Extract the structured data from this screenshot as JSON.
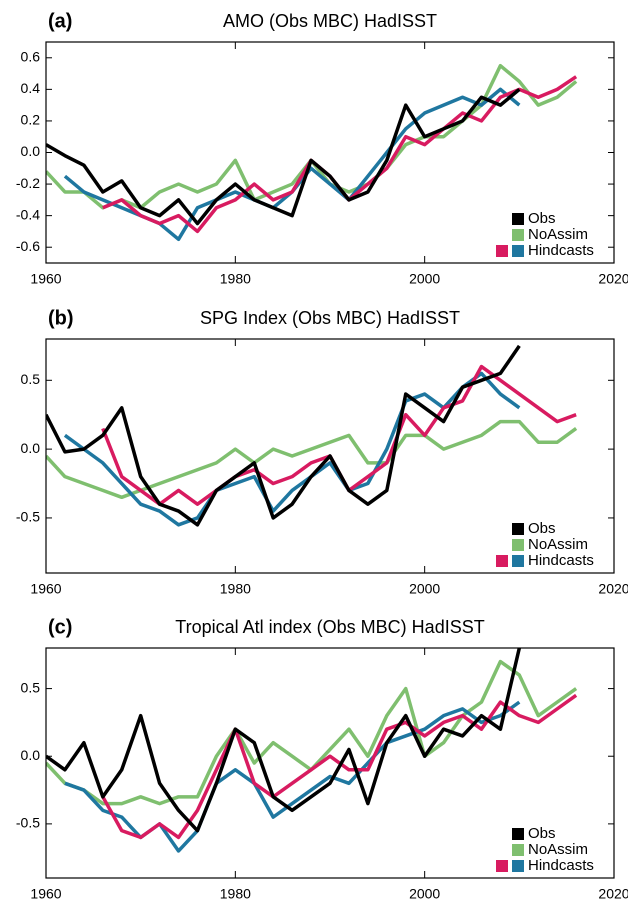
{
  "chart_data": [
    {
      "type": "line",
      "panel_label": "(a)",
      "title": "AMO (Obs MBC) HadISST",
      "legend": "lower right",
      "x": [
        1960,
        1962,
        1964,
        1966,
        1968,
        1970,
        1972,
        1974,
        1976,
        1978,
        1980,
        1982,
        1984,
        1986,
        1988,
        1990,
        1992,
        1994,
        1996,
        1998,
        2000,
        2002,
        2004,
        2006,
        2008,
        2010,
        2012,
        2014,
        2016
      ],
      "xlim": [
        1960,
        2020
      ],
      "xticks": [
        1960,
        1980,
        2000,
        2020
      ],
      "ylim": [
        -0.7,
        0.7
      ],
      "yticks": [
        -0.6,
        -0.4,
        -0.2,
        {
          "value": 0,
          "label": "0.0"
        },
        0.2,
        0.4,
        0.6
      ],
      "series": [
        {
          "name": "Obs",
          "color": "#000000",
          "values": [
            0.05,
            -0.02,
            -0.08,
            -0.25,
            -0.18,
            -0.35,
            -0.4,
            -0.3,
            -0.45,
            -0.3,
            -0.2,
            -0.3,
            -0.35,
            -0.4,
            -0.05,
            -0.15,
            -0.3,
            -0.25,
            -0.05,
            0.3,
            0.1,
            0.15,
            0.2,
            0.35,
            0.3,
            0.4,
            null,
            null,
            null
          ]
        },
        {
          "name": "NoAssim",
          "color": "#7fbf6f",
          "values": [
            -0.12,
            -0.25,
            -0.25,
            -0.35,
            -0.3,
            -0.35,
            -0.25,
            -0.2,
            -0.25,
            -0.2,
            -0.05,
            -0.3,
            -0.25,
            -0.2,
            -0.05,
            -0.2,
            -0.25,
            -0.2,
            -0.1,
            0.05,
            0.1,
            0.1,
            0.2,
            0.3,
            0.55,
            0.45,
            0.3,
            0.35,
            0.45
          ]
        },
        {
          "name": "Hindcasts",
          "color": "#d81b60",
          "values": [
            null,
            null,
            null,
            -0.35,
            -0.3,
            -0.4,
            -0.45,
            -0.4,
            -0.5,
            -0.35,
            -0.3,
            -0.2,
            -0.3,
            -0.25,
            -0.05,
            -0.15,
            -0.3,
            -0.2,
            -0.1,
            0.1,
            0.05,
            0.15,
            0.25,
            0.2,
            0.35,
            0.4,
            0.35,
            0.4,
            0.48
          ]
        },
        {
          "color": "#1f77a0",
          "values": [
            null,
            -0.15,
            -0.25,
            -0.3,
            -0.35,
            -0.4,
            -0.45,
            -0.55,
            -0.35,
            -0.3,
            -0.25,
            -0.3,
            -0.35,
            -0.25,
            -0.1,
            -0.2,
            -0.3,
            -0.15,
            0,
            0.15,
            0.25,
            0.3,
            0.35,
            0.3,
            0.4,
            0.3,
            null,
            null,
            null
          ]
        }
      ]
    },
    {
      "type": "line",
      "panel_label": "(b)",
      "title": "SPG Index (Obs MBC) HadISST",
      "legend": "lower right",
      "x": [
        1960,
        1962,
        1964,
        1966,
        1968,
        1970,
        1972,
        1974,
        1976,
        1978,
        1980,
        1982,
        1984,
        1986,
        1988,
        1990,
        1992,
        1994,
        1996,
        1998,
        2000,
        2002,
        2004,
        2006,
        2008,
        2010,
        2012,
        2014,
        2016
      ],
      "xlim": [
        1960,
        2020
      ],
      "xticks": [
        1960,
        1980,
        2000,
        2020
      ],
      "ylim": [
        -0.9,
        0.8
      ],
      "yticks": [
        -0.5,
        {
          "value": 0,
          "label": "0.0"
        },
        0.5
      ],
      "series": [
        {
          "name": "Obs",
          "color": "#000000",
          "values": [
            0.25,
            -0.02,
            0,
            0.1,
            0.3,
            -0.2,
            -0.4,
            -0.45,
            -0.55,
            -0.3,
            -0.2,
            -0.1,
            -0.5,
            -0.4,
            -0.2,
            -0.05,
            -0.3,
            -0.4,
            -0.3,
            0.4,
            0.3,
            0.2,
            0.45,
            0.5,
            0.55,
            0.75,
            null,
            null,
            null
          ]
        },
        {
          "name": "NoAssim",
          "color": "#7fbf6f",
          "values": [
            -0.05,
            -0.2,
            -0.25,
            -0.3,
            -0.35,
            -0.3,
            -0.25,
            -0.2,
            -0.15,
            -0.1,
            0,
            -0.1,
            0,
            -0.05,
            0,
            0.05,
            0.1,
            -0.1,
            -0.1,
            0.1,
            0.1,
            0,
            0.05,
            0.1,
            0.2,
            0.2,
            0.05,
            0.05,
            0.15
          ]
        },
        {
          "name": "Hindcasts",
          "color": "#d81b60",
          "values": [
            null,
            null,
            null,
            0.15,
            -0.2,
            -0.3,
            -0.4,
            -0.3,
            -0.4,
            -0.3,
            -0.2,
            -0.15,
            -0.25,
            -0.2,
            -0.1,
            -0.05,
            -0.3,
            -0.2,
            -0.1,
            0.25,
            0.1,
            0.3,
            0.35,
            0.6,
            0.5,
            0.4,
            0.3,
            0.2,
            0.25
          ]
        },
        {
          "color": "#1f77a0",
          "values": [
            null,
            0.1,
            0,
            -0.1,
            -0.25,
            -0.4,
            -0.45,
            -0.55,
            -0.5,
            -0.3,
            -0.25,
            -0.2,
            -0.45,
            -0.3,
            -0.2,
            -0.1,
            -0.3,
            -0.25,
            0,
            0.35,
            0.4,
            0.3,
            0.45,
            0.55,
            0.4,
            0.3,
            null,
            null,
            null
          ]
        }
      ]
    },
    {
      "type": "line",
      "panel_label": "(c)",
      "title": "Tropical Atl index (Obs MBC) HadISST",
      "legend": "lower right",
      "x": [
        1960,
        1962,
        1964,
        1966,
        1968,
        1970,
        1972,
        1974,
        1976,
        1978,
        1980,
        1982,
        1984,
        1986,
        1988,
        1990,
        1992,
        1994,
        1996,
        1998,
        2000,
        2002,
        2004,
        2006,
        2008,
        2010,
        2012,
        2014,
        2016
      ],
      "xlim": [
        1960,
        2020
      ],
      "xticks": [
        1960,
        1980,
        2000,
        2020
      ],
      "ylim": [
        -0.9,
        0.8
      ],
      "yticks": [
        -0.5,
        {
          "value": 0,
          "label": "0.0"
        },
        0.5
      ],
      "series": [
        {
          "name": "Obs",
          "color": "#000000",
          "values": [
            0,
            -0.1,
            0.1,
            -0.3,
            -0.1,
            0.3,
            -0.2,
            -0.4,
            -0.55,
            -0.2,
            0.2,
            0.1,
            -0.3,
            -0.4,
            -0.3,
            -0.2,
            0.05,
            -0.35,
            0.1,
            0.3,
            0,
            0.2,
            0.15,
            0.3,
            0.2,
            0.8,
            null,
            null,
            null
          ]
        },
        {
          "name": "NoAssim",
          "color": "#7fbf6f",
          "values": [
            -0.05,
            -0.2,
            -0.25,
            -0.35,
            -0.35,
            -0.3,
            -0.35,
            -0.3,
            -0.3,
            0,
            0.2,
            -0.05,
            0.1,
            0,
            -0.1,
            0.05,
            0.2,
            0,
            0.3,
            0.5,
            0,
            0.1,
            0.3,
            0.4,
            0.7,
            0.6,
            0.3,
            0.4,
            0.5
          ]
        },
        {
          "name": "Hindcasts",
          "color": "#d81b60",
          "values": [
            null,
            null,
            null,
            -0.3,
            -0.55,
            -0.6,
            -0.5,
            -0.6,
            -0.4,
            -0.1,
            0.2,
            -0.2,
            -0.3,
            -0.2,
            -0.1,
            0,
            -0.1,
            -0.1,
            0.2,
            0.25,
            0.15,
            0.25,
            0.3,
            0.2,
            0.4,
            0.3,
            0.25,
            0.35,
            0.45
          ]
        },
        {
          "color": "#1f77a0",
          "values": [
            null,
            -0.2,
            -0.25,
            -0.4,
            -0.45,
            -0.6,
            -0.5,
            -0.7,
            -0.55,
            -0.2,
            -0.1,
            -0.2,
            -0.45,
            -0.35,
            -0.25,
            -0.15,
            -0.2,
            -0.05,
            0.1,
            0.15,
            0.2,
            0.3,
            0.35,
            0.25,
            0.3,
            0.4,
            null,
            null,
            null
          ]
        }
      ]
    }
  ]
}
